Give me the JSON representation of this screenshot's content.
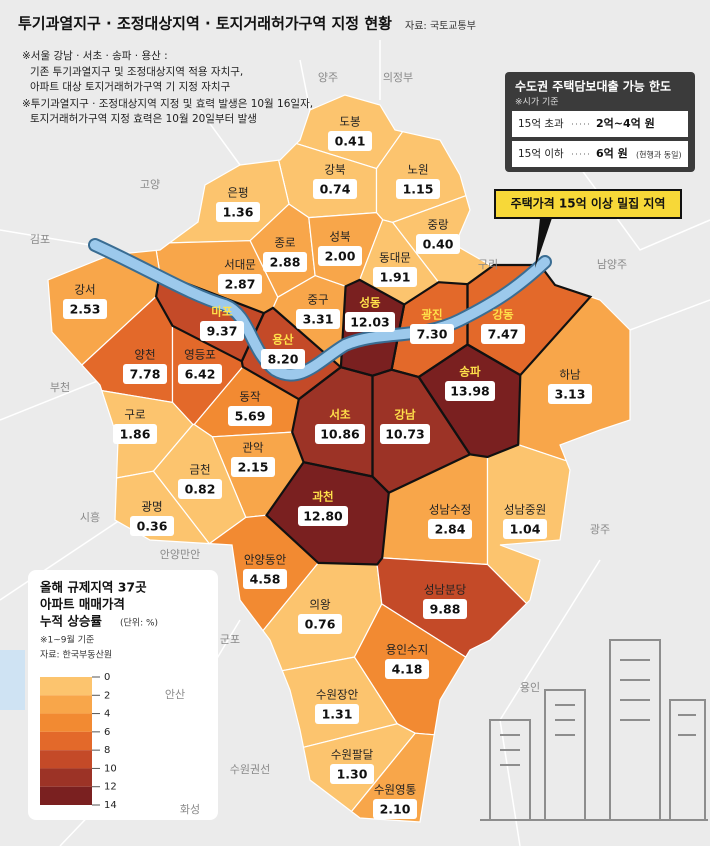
{
  "title": "투기과열지구 · 조정대상지역 · 토지거래허가구역 지정 현황",
  "source": "자료: 국토교통부",
  "notes": [
    "※서울 강남 · 서초 · 송파 · 용산 :",
    "기존 투기과열지구 및 조정대상지역 적용 자치구,",
    "아파트 대상 토지거래허가구역 기 지정 자치구",
    "※투기과열지구 · 조정대상지역 지정 및 효력 발생은 10월 16일자,",
    "토지거래허가구역 지정 효력은 10월 20일부터 발생"
  ],
  "loan_box": {
    "title": "수도권 주택담보대출 가능 한도",
    "subtitle": "※시가 기준",
    "rows": [
      {
        "condition": "15억 초과",
        "limit": "2억~4억 원"
      },
      {
        "condition": "15억 이하",
        "limit": "6억 원",
        "note": "(현행과 동일)"
      }
    ]
  },
  "callout": "주택가격 15억 이상 밀집 지역",
  "legend": {
    "title": [
      "올해 규제지역 37곳",
      "아파트 매매가격",
      "누적 상승률"
    ],
    "unit": "(단위: %)",
    "note": "※1~9월 기준",
    "source": "자료: 한국부동산원",
    "ticks": [
      0,
      2,
      4,
      6,
      8,
      10,
      12,
      14
    ],
    "colors": [
      "#fcc46e",
      "#f8a64a",
      "#f28a32",
      "#e3692a",
      "#c44a28",
      "#9c3326",
      "#7a2020"
    ]
  },
  "regions": [
    {
      "name": "도봉",
      "value": 0.41,
      "value_label": "0.41",
      "highlight": false
    },
    {
      "name": "강북",
      "value": 0.74,
      "value_label": "0.74",
      "highlight": false
    },
    {
      "name": "노원",
      "value": 1.15,
      "value_label": "1.15",
      "highlight": false
    },
    {
      "name": "은평",
      "value": 1.36,
      "value_label": "1.36",
      "highlight": false
    },
    {
      "name": "종로",
      "value": 2.88,
      "value_label": "2.88",
      "highlight": false
    },
    {
      "name": "성북",
      "value": 2.0,
      "value_label": "2.00",
      "highlight": false
    },
    {
      "name": "중랑",
      "value": 0.4,
      "value_label": "0.40",
      "highlight": false
    },
    {
      "name": "동대문",
      "value": 1.91,
      "value_label": "1.91",
      "highlight": false
    },
    {
      "name": "서대문",
      "value": 2.87,
      "value_label": "2.87",
      "highlight": false
    },
    {
      "name": "강서",
      "value": 2.53,
      "value_label": "2.53",
      "highlight": false
    },
    {
      "name": "마포",
      "value": 9.37,
      "value_label": "9.37",
      "highlight": true
    },
    {
      "name": "중구",
      "value": 3.31,
      "value_label": "3.31",
      "highlight": false
    },
    {
      "name": "성동",
      "value": 12.03,
      "value_label": "12.03",
      "highlight": true
    },
    {
      "name": "광진",
      "value": 7.3,
      "value_label": "7.30",
      "highlight": true
    },
    {
      "name": "강동",
      "value": 7.47,
      "value_label": "7.47",
      "highlight": true
    },
    {
      "name": "양천",
      "value": 7.78,
      "value_label": "7.78",
      "highlight": false
    },
    {
      "name": "영등포",
      "value": 6.42,
      "value_label": "6.42",
      "highlight": false
    },
    {
      "name": "용산",
      "value": 8.2,
      "value_label": "8.20",
      "highlight": true
    },
    {
      "name": "송파",
      "value": 13.98,
      "value_label": "13.98",
      "highlight": true
    },
    {
      "name": "하남",
      "value": 3.13,
      "value_label": "3.13",
      "highlight": false
    },
    {
      "name": "구로",
      "value": 1.86,
      "value_label": "1.86",
      "highlight": false
    },
    {
      "name": "동작",
      "value": 5.69,
      "value_label": "5.69",
      "highlight": false
    },
    {
      "name": "서초",
      "value": 10.86,
      "value_label": "10.86",
      "highlight": true
    },
    {
      "name": "강남",
      "value": 10.73,
      "value_label": "10.73",
      "highlight": true
    },
    {
      "name": "관악",
      "value": 2.15,
      "value_label": "2.15",
      "highlight": false
    },
    {
      "name": "금천",
      "value": 0.82,
      "value_label": "0.82",
      "highlight": false
    },
    {
      "name": "과천",
      "value": 12.8,
      "value_label": "12.80",
      "highlight": true
    },
    {
      "name": "광명",
      "value": 0.36,
      "value_label": "0.36",
      "highlight": false
    },
    {
      "name": "성남수정",
      "value": 2.84,
      "value_label": "2.84",
      "highlight": false
    },
    {
      "name": "성남중원",
      "value": 1.04,
      "value_label": "1.04",
      "highlight": false
    },
    {
      "name": "안양동안",
      "value": 4.58,
      "value_label": "4.58",
      "highlight": false
    },
    {
      "name": "의왕",
      "value": 0.76,
      "value_label": "0.76",
      "highlight": false
    },
    {
      "name": "성남분당",
      "value": 9.88,
      "value_label": "9.88",
      "highlight": false
    },
    {
      "name": "용인수지",
      "value": 4.18,
      "value_label": "4.18",
      "highlight": false
    },
    {
      "name": "수원장안",
      "value": 1.31,
      "value_label": "1.31",
      "highlight": false
    },
    {
      "name": "수원팔달",
      "value": 1.3,
      "value_label": "1.30",
      "highlight": false
    },
    {
      "name": "수원영통",
      "value": 2.1,
      "value_label": "2.10",
      "highlight": false
    }
  ],
  "neighbors": [
    "양주",
    "의정부",
    "고양",
    "김포",
    "구리",
    "남양주",
    "부천",
    "시흥",
    "광주",
    "안양만안",
    "군포",
    "안산",
    "용인",
    "수원권선",
    "화성"
  ]
}
